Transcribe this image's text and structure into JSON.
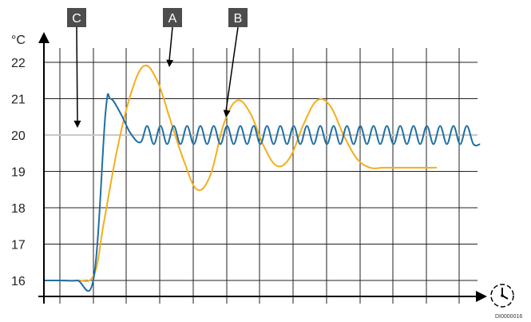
{
  "chart_data": {
    "type": "line",
    "title": "",
    "xlabel": "",
    "ylabel": "°C",
    "ylim": [
      15.6,
      23
    ],
    "y_ticks": [
      "16",
      "17",
      "18",
      "19",
      "20",
      "21",
      "22"
    ],
    "grid": true,
    "setpoint": 20,
    "colors": {
      "series_a": "#f5ae1a",
      "series_b": "#1f6fa3",
      "setpoint": "#c8c8c8",
      "grid": "#222222",
      "callout": "#4d4d4d"
    },
    "callouts": [
      {
        "label": "A",
        "target": "series_a_peak"
      },
      {
        "label": "B",
        "target": "series_b_peak"
      },
      {
        "label": "C",
        "target": "setpoint"
      }
    ],
    "series": [
      {
        "color": "#f5ae1a",
        "x": [
          0,
          0.5,
          1,
          1.5,
          1.8,
          2.2,
          2.6,
          3.0,
          3.4,
          3.8,
          4.2,
          4.6,
          5.0,
          5.4,
          5.8,
          6.2,
          6.6,
          7.0,
          7.4,
          7.8,
          8.2,
          8.6,
          9.0,
          9.4,
          9.8,
          10.2,
          10.6,
          11.0,
          11.4,
          11.8
        ],
        "y": [
          16.0,
          16.0,
          16.0,
          16.15,
          17.6,
          19.6,
          21.1,
          21.9,
          21.5,
          20.4,
          19.3,
          18.5,
          18.9,
          20.3,
          20.95,
          20.6,
          19.7,
          19.15,
          19.4,
          20.3,
          20.95,
          20.8,
          20.0,
          19.35,
          19.1,
          19.1,
          19.1,
          19.1,
          19.1,
          19.1
        ]
      },
      {
        "color": "#1f6fa3",
        "x": [
          0,
          0.5,
          1,
          1.5,
          1.85,
          2.0,
          2.3,
          2.6,
          2.9,
          3.1,
          3.3,
          3.5,
          3.7,
          3.9,
          4.1,
          4.3,
          4.5,
          4.7,
          4.9,
          5.1,
          5.3,
          5.5,
          5.7,
          5.9,
          6.1,
          6.3,
          6.5,
          6.7,
          6.9,
          7.1,
          7.3,
          7.5,
          7.7,
          7.9,
          8.1,
          8.3,
          8.5,
          8.7,
          8.9,
          9.1,
          9.3,
          9.5,
          9.7,
          9.9,
          10.1,
          10.3,
          10.5,
          10.7,
          10.9,
          11.1,
          11.3,
          11.5,
          11.7,
          11.9,
          12.1,
          12.3,
          12.5,
          12.7,
          12.9,
          13.1
        ],
        "y": [
          16.0,
          16.0,
          16.0,
          16.1,
          20.6,
          21.0,
          20.6,
          20.05,
          19.8,
          20.25,
          19.75,
          20.25,
          19.75,
          20.25,
          19.75,
          20.25,
          19.75,
          20.25,
          19.75,
          20.25,
          19.75,
          20.25,
          19.75,
          20.25,
          19.75,
          20.25,
          19.75,
          20.25,
          19.75,
          20.25,
          19.75,
          20.25,
          19.75,
          20.25,
          19.75,
          20.25,
          19.75,
          20.25,
          19.75,
          20.25,
          19.75,
          20.25,
          19.75,
          20.25,
          19.75,
          20.25,
          19.75,
          20.25,
          19.75,
          20.25,
          19.75,
          20.25,
          19.75,
          20.25,
          19.75,
          20.25,
          19.75,
          20.25,
          19.75,
          19.75
        ]
      }
    ]
  },
  "footer": {
    "code": "DI0000016"
  },
  "icons": {
    "x_axis": "clock-icon"
  }
}
